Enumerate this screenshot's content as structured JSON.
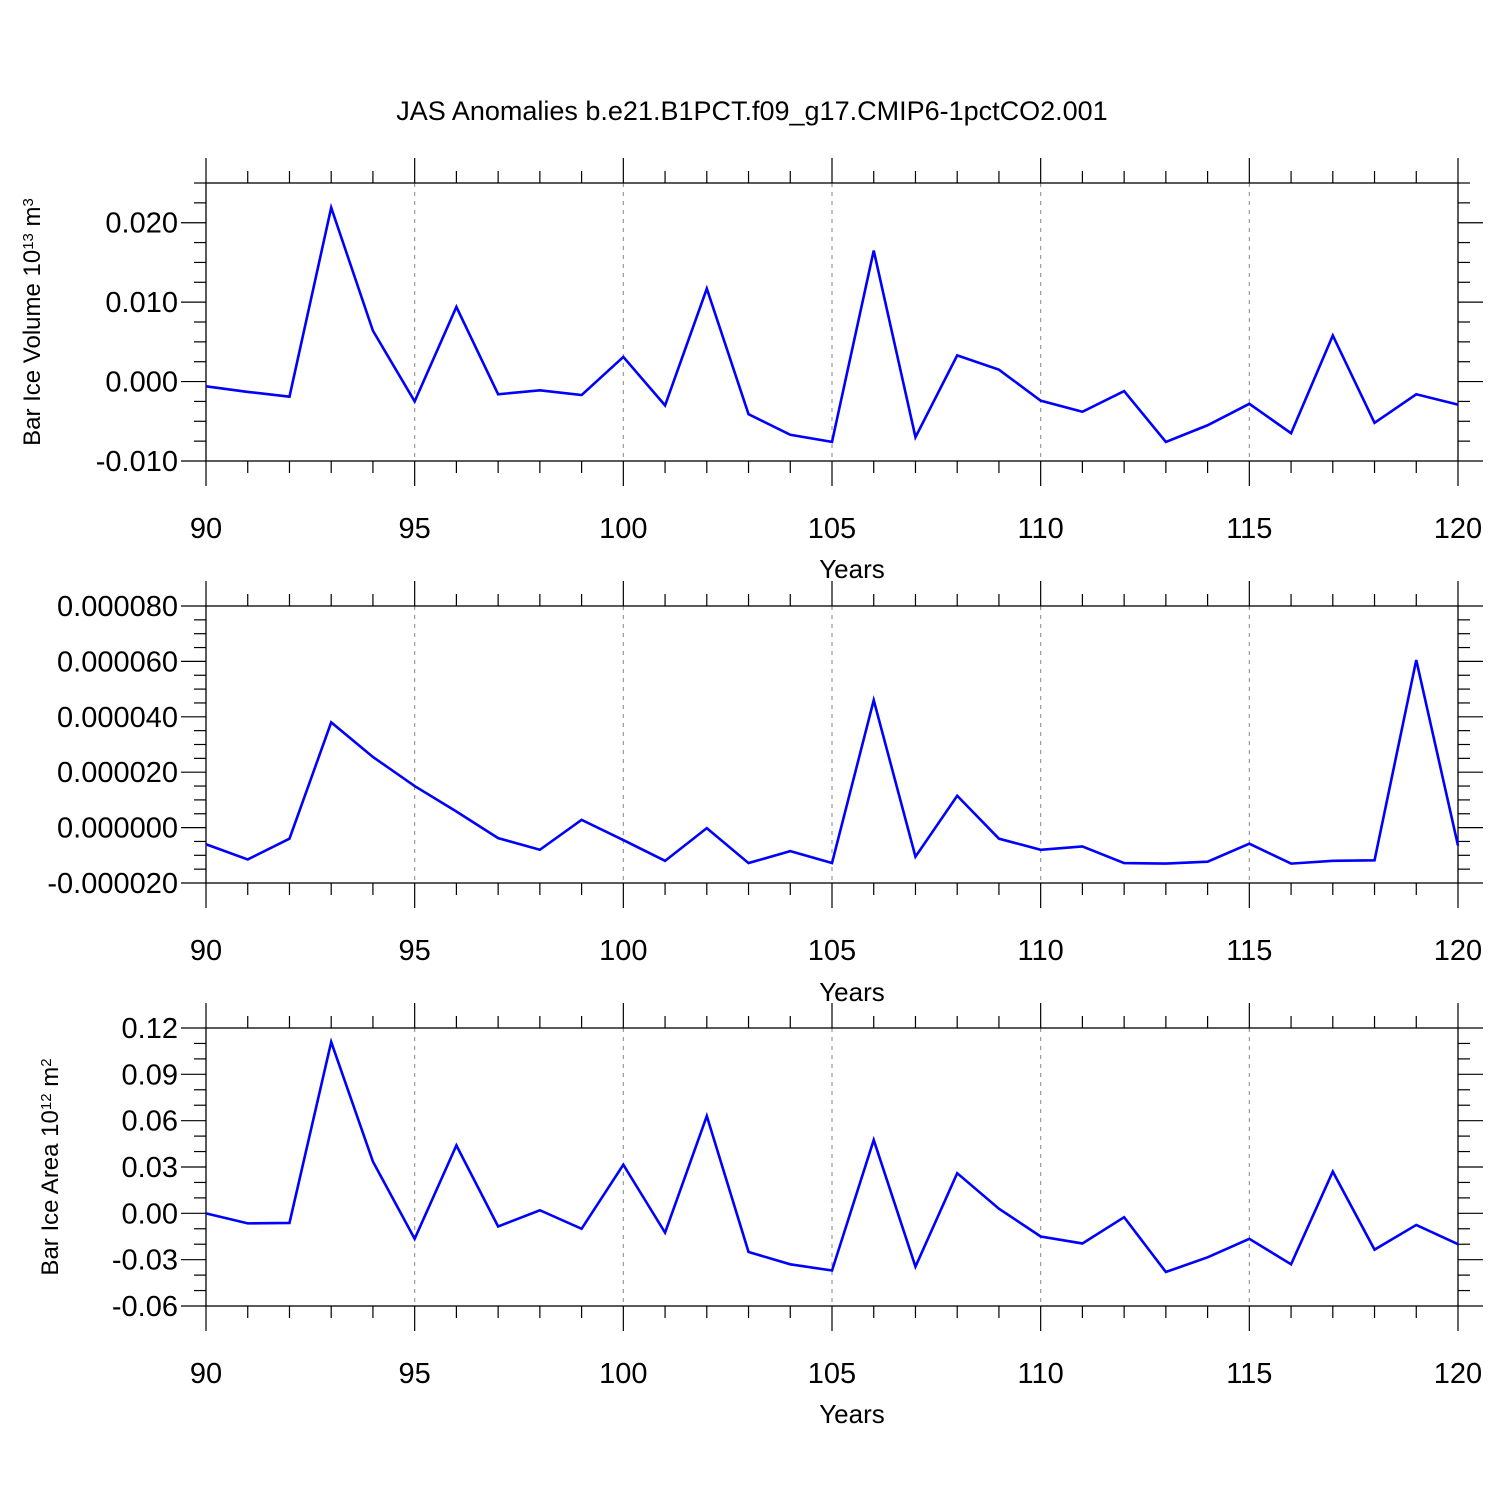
{
  "title": "JAS Anomalies b.e21.B1PCT.f09_g17.CMIP6-1pctCO2.001",
  "line_color": "#0000ff",
  "chart_data": [
    {
      "type": "line",
      "title": "JAS Anomalies b.e21.B1PCT.f09_g17.CMIP6-1pctCO2.001",
      "xlabel": "Years",
      "ylabel": "Bar Ice Volume 10",
      "ylabel_exp": "13",
      "ylabel_unit": " m",
      "ylabel_unit_exp": "3",
      "xlim": [
        90,
        120
      ],
      "ylim": [
        -0.01,
        0.025
      ],
      "xticks": [
        90,
        95,
        100,
        105,
        110,
        115,
        120
      ],
      "xtick_labels": [
        "90",
        "95",
        "100",
        "105",
        "110",
        "115",
        "120"
      ],
      "yticks": [
        -0.01,
        0.0,
        0.01,
        0.02
      ],
      "ytick_labels": [
        "-0.010",
        "0.000",
        "0.010",
        "0.020"
      ],
      "grid": "vertical dashed at major x ticks",
      "series": [
        {
          "x": [
            90,
            91,
            92,
            93,
            94,
            95,
            96,
            97,
            98,
            99,
            100,
            101,
            102,
            103,
            104,
            105,
            106,
            107,
            108,
            109,
            110,
            111,
            112,
            113,
            114,
            115,
            116,
            117,
            118,
            119,
            120
          ],
          "values": [
            -0.0006,
            -0.0013,
            -0.0019,
            0.0219,
            0.0064,
            -0.0025,
            0.0094,
            -0.0016,
            -0.0011,
            -0.0017,
            0.0031,
            -0.003,
            0.0117,
            -0.0041,
            -0.0067,
            -0.0076,
            0.0165,
            -0.007,
            0.0033,
            0.0015,
            -0.0024,
            -0.0038,
            -0.0012,
            -0.0076,
            -0.0055,
            -0.0028,
            -0.0065,
            0.0058,
            -0.0052,
            -0.0016,
            -0.0029
          ]
        }
      ]
    },
    {
      "type": "line",
      "xlabel": "Years",
      "ylabel": "",
      "xlim": [
        90,
        120
      ],
      "ylim": [
        -2e-05,
        8e-05
      ],
      "xticks": [
        90,
        95,
        100,
        105,
        110,
        115,
        120
      ],
      "xtick_labels": [
        "90",
        "95",
        "100",
        "105",
        "110",
        "115",
        "120"
      ],
      "yticks": [
        -2e-05,
        0.0,
        2e-05,
        4e-05,
        6e-05,
        8e-05
      ],
      "ytick_labels": [
        "-0.000020",
        "0.000000",
        "0.000020",
        "0.000040",
        "0.000060",
        "0.000080"
      ],
      "grid": "vertical dashed at major x ticks",
      "series": [
        {
          "x": [
            90,
            91,
            92,
            93,
            94,
            95,
            96,
            97,
            98,
            99,
            100,
            101,
            102,
            103,
            104,
            105,
            106,
            107,
            108,
            109,
            110,
            111,
            112,
            113,
            114,
            115,
            116,
            117,
            118,
            119,
            120
          ],
          "values": [
            -6e-06,
            -1.15e-05,
            -4e-06,
            3.8e-05,
            2.55e-05,
            1.5e-05,
            5.8e-06,
            -3.8e-06,
            -8e-06,
            2.8e-06,
            -4.5e-06,
            -1.2e-05,
            -2e-07,
            -1.28e-05,
            -8.5e-06,
            -1.28e-05,
            4.6e-05,
            -1.05e-05,
            1.15e-05,
            -4e-06,
            -8e-06,
            -6.8e-06,
            -1.28e-05,
            -1.3e-05,
            -1.23e-05,
            -5.8e-06,
            -1.3e-05,
            -1.2e-05,
            -1.18e-05,
            6.05e-05,
            -6.5e-06
          ]
        }
      ]
    },
    {
      "type": "line",
      "xlabel": "Years",
      "ylabel": "Bar Ice Area 10",
      "ylabel_exp": "12",
      "ylabel_unit": " m",
      "ylabel_unit_exp": "2",
      "xlim": [
        90,
        120
      ],
      "ylim": [
        -0.06,
        0.12
      ],
      "xticks": [
        90,
        95,
        100,
        105,
        110,
        115,
        120
      ],
      "xtick_labels": [
        "90",
        "95",
        "100",
        "105",
        "110",
        "115",
        "120"
      ],
      "yticks": [
        -0.06,
        -0.03,
        0.0,
        0.03,
        0.06,
        0.09,
        0.12
      ],
      "ytick_labels": [
        "-0.06",
        "-0.03",
        "0.00",
        "0.03",
        "0.06",
        "0.09",
        "0.12"
      ],
      "grid": "vertical dashed at major x ticks",
      "series": [
        {
          "x": [
            90,
            91,
            92,
            93,
            94,
            95,
            96,
            97,
            98,
            99,
            100,
            101,
            102,
            103,
            104,
            105,
            106,
            107,
            108,
            109,
            110,
            111,
            112,
            113,
            114,
            115,
            116,
            117,
            118,
            119,
            120
          ],
          "values": [
            0.0,
            -0.0065,
            -0.0062,
            0.111,
            0.0335,
            -0.0165,
            0.044,
            -0.0085,
            0.002,
            -0.01,
            0.0315,
            -0.0125,
            0.063,
            -0.025,
            -0.033,
            -0.037,
            0.0475,
            -0.0345,
            0.026,
            0.003,
            -0.015,
            -0.0195,
            -0.0025,
            -0.038,
            -0.0285,
            -0.0165,
            -0.033,
            0.027,
            -0.0235,
            -0.0075,
            -0.02
          ]
        }
      ]
    }
  ]
}
